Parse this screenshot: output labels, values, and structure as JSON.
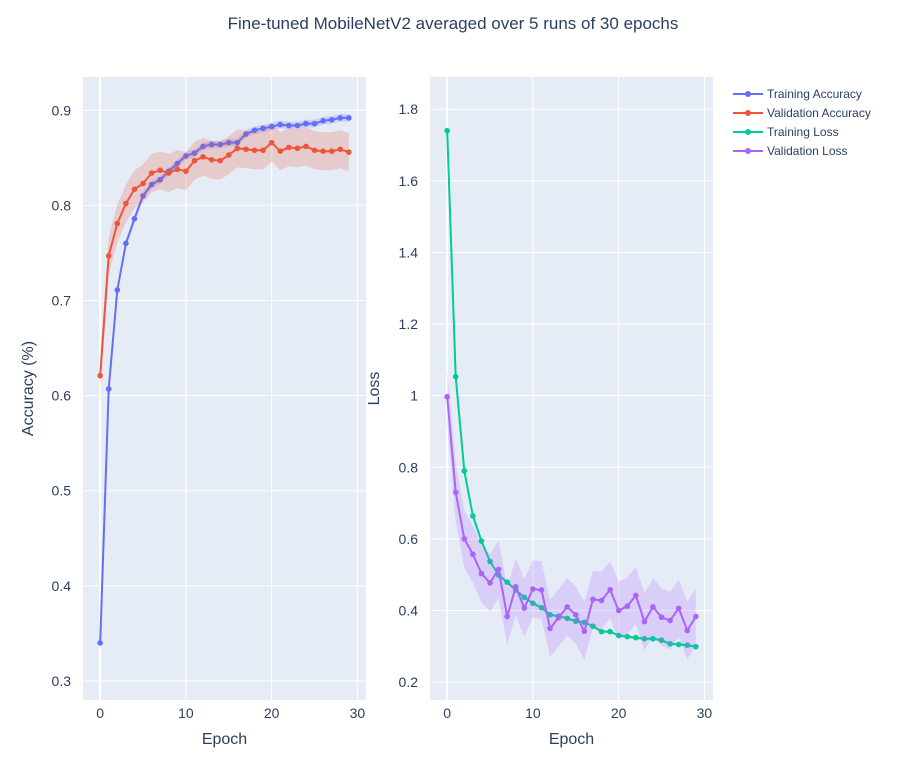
{
  "title": "Fine-tuned MobileNetV2 averaged over 5 runs of 30 epochs",
  "colors": {
    "plot_bg": "#e5ecf6",
    "grid": "#ffffff",
    "train_acc": "#636efa",
    "val_acc": "#ef553b",
    "train_loss": "#00cc96",
    "val_loss": "#ab63fa"
  },
  "legend": {
    "placement": "top-right",
    "entries": [
      "Training Accuracy",
      "Validation Accuracy",
      "Training Loss",
      "Validation Loss"
    ]
  },
  "chart_data": [
    {
      "type": "line",
      "xlabel": "Epoch",
      "ylabel": "Accuracy (%)",
      "xlim": [
        -2,
        31
      ],
      "ylim": [
        0.28,
        0.935
      ],
      "x_ticks": [
        0,
        10,
        20,
        30
      ],
      "y_ticks": [
        0.3,
        0.4,
        0.5,
        0.6,
        0.7,
        0.8,
        0.9
      ],
      "grid": true,
      "x": [
        0,
        1,
        2,
        3,
        4,
        5,
        6,
        7,
        8,
        9,
        10,
        11,
        12,
        13,
        14,
        15,
        16,
        17,
        18,
        19,
        20,
        21,
        22,
        23,
        24,
        25,
        26,
        27,
        28,
        29
      ],
      "series": [
        {
          "name": "Training Accuracy",
          "color": "#636efa",
          "values": [
            0.34,
            0.607,
            0.711,
            0.76,
            0.786,
            0.81,
            0.822,
            0.827,
            0.836,
            0.844,
            0.852,
            0.855,
            0.862,
            0.864,
            0.864,
            0.866,
            0.866,
            0.875,
            0.879,
            0.881,
            0.883,
            0.885,
            0.884,
            0.884,
            0.886,
            0.886,
            0.889,
            0.89,
            0.892,
            0.892
          ],
          "band": 0.004
        },
        {
          "name": "Validation Accuracy",
          "color": "#ef553b",
          "values": [
            0.621,
            0.747,
            0.781,
            0.802,
            0.817,
            0.823,
            0.834,
            0.837,
            0.834,
            0.838,
            0.836,
            0.847,
            0.851,
            0.848,
            0.847,
            0.853,
            0.86,
            0.859,
            0.858,
            0.858,
            0.866,
            0.857,
            0.861,
            0.86,
            0.862,
            0.858,
            0.857,
            0.857,
            0.859,
            0.856
          ],
          "band": 0.02
        }
      ]
    },
    {
      "type": "line",
      "xlabel": "Epoch",
      "ylabel": "Loss",
      "xlim": [
        -2,
        31
      ],
      "ylim": [
        0.15,
        1.89
      ],
      "x_ticks": [
        0,
        10,
        20,
        30
      ],
      "y_ticks": [
        0.2,
        0.4,
        0.6,
        0.8,
        1,
        1.2,
        1.4,
        1.6,
        1.8
      ],
      "grid": true,
      "x": [
        0,
        1,
        2,
        3,
        4,
        5,
        6,
        7,
        8,
        9,
        10,
        11,
        12,
        13,
        14,
        15,
        16,
        17,
        18,
        19,
        20,
        21,
        22,
        23,
        24,
        25,
        26,
        27,
        28,
        29
      ],
      "series": [
        {
          "name": "Training Loss",
          "color": "#00cc96",
          "values": [
            1.74,
            1.053,
            0.79,
            0.664,
            0.594,
            0.537,
            0.499,
            0.479,
            0.457,
            0.437,
            0.42,
            0.408,
            0.388,
            0.384,
            0.378,
            0.37,
            0.367,
            0.356,
            0.341,
            0.341,
            0.33,
            0.327,
            0.324,
            0.321,
            0.321,
            0.317,
            0.307,
            0.305,
            0.303,
            0.299
          ],
          "band": 0.004
        },
        {
          "name": "Validation Loss",
          "color": "#ab63fa",
          "values": [
            0.997,
            0.73,
            0.6,
            0.557,
            0.503,
            0.477,
            0.515,
            0.383,
            0.466,
            0.407,
            0.46,
            0.457,
            0.35,
            0.38,
            0.41,
            0.388,
            0.342,
            0.431,
            0.428,
            0.458,
            0.4,
            0.412,
            0.442,
            0.369,
            0.41,
            0.381,
            0.372,
            0.406,
            0.344,
            0.383
          ],
          "band": 0.08
        }
      ]
    }
  ]
}
